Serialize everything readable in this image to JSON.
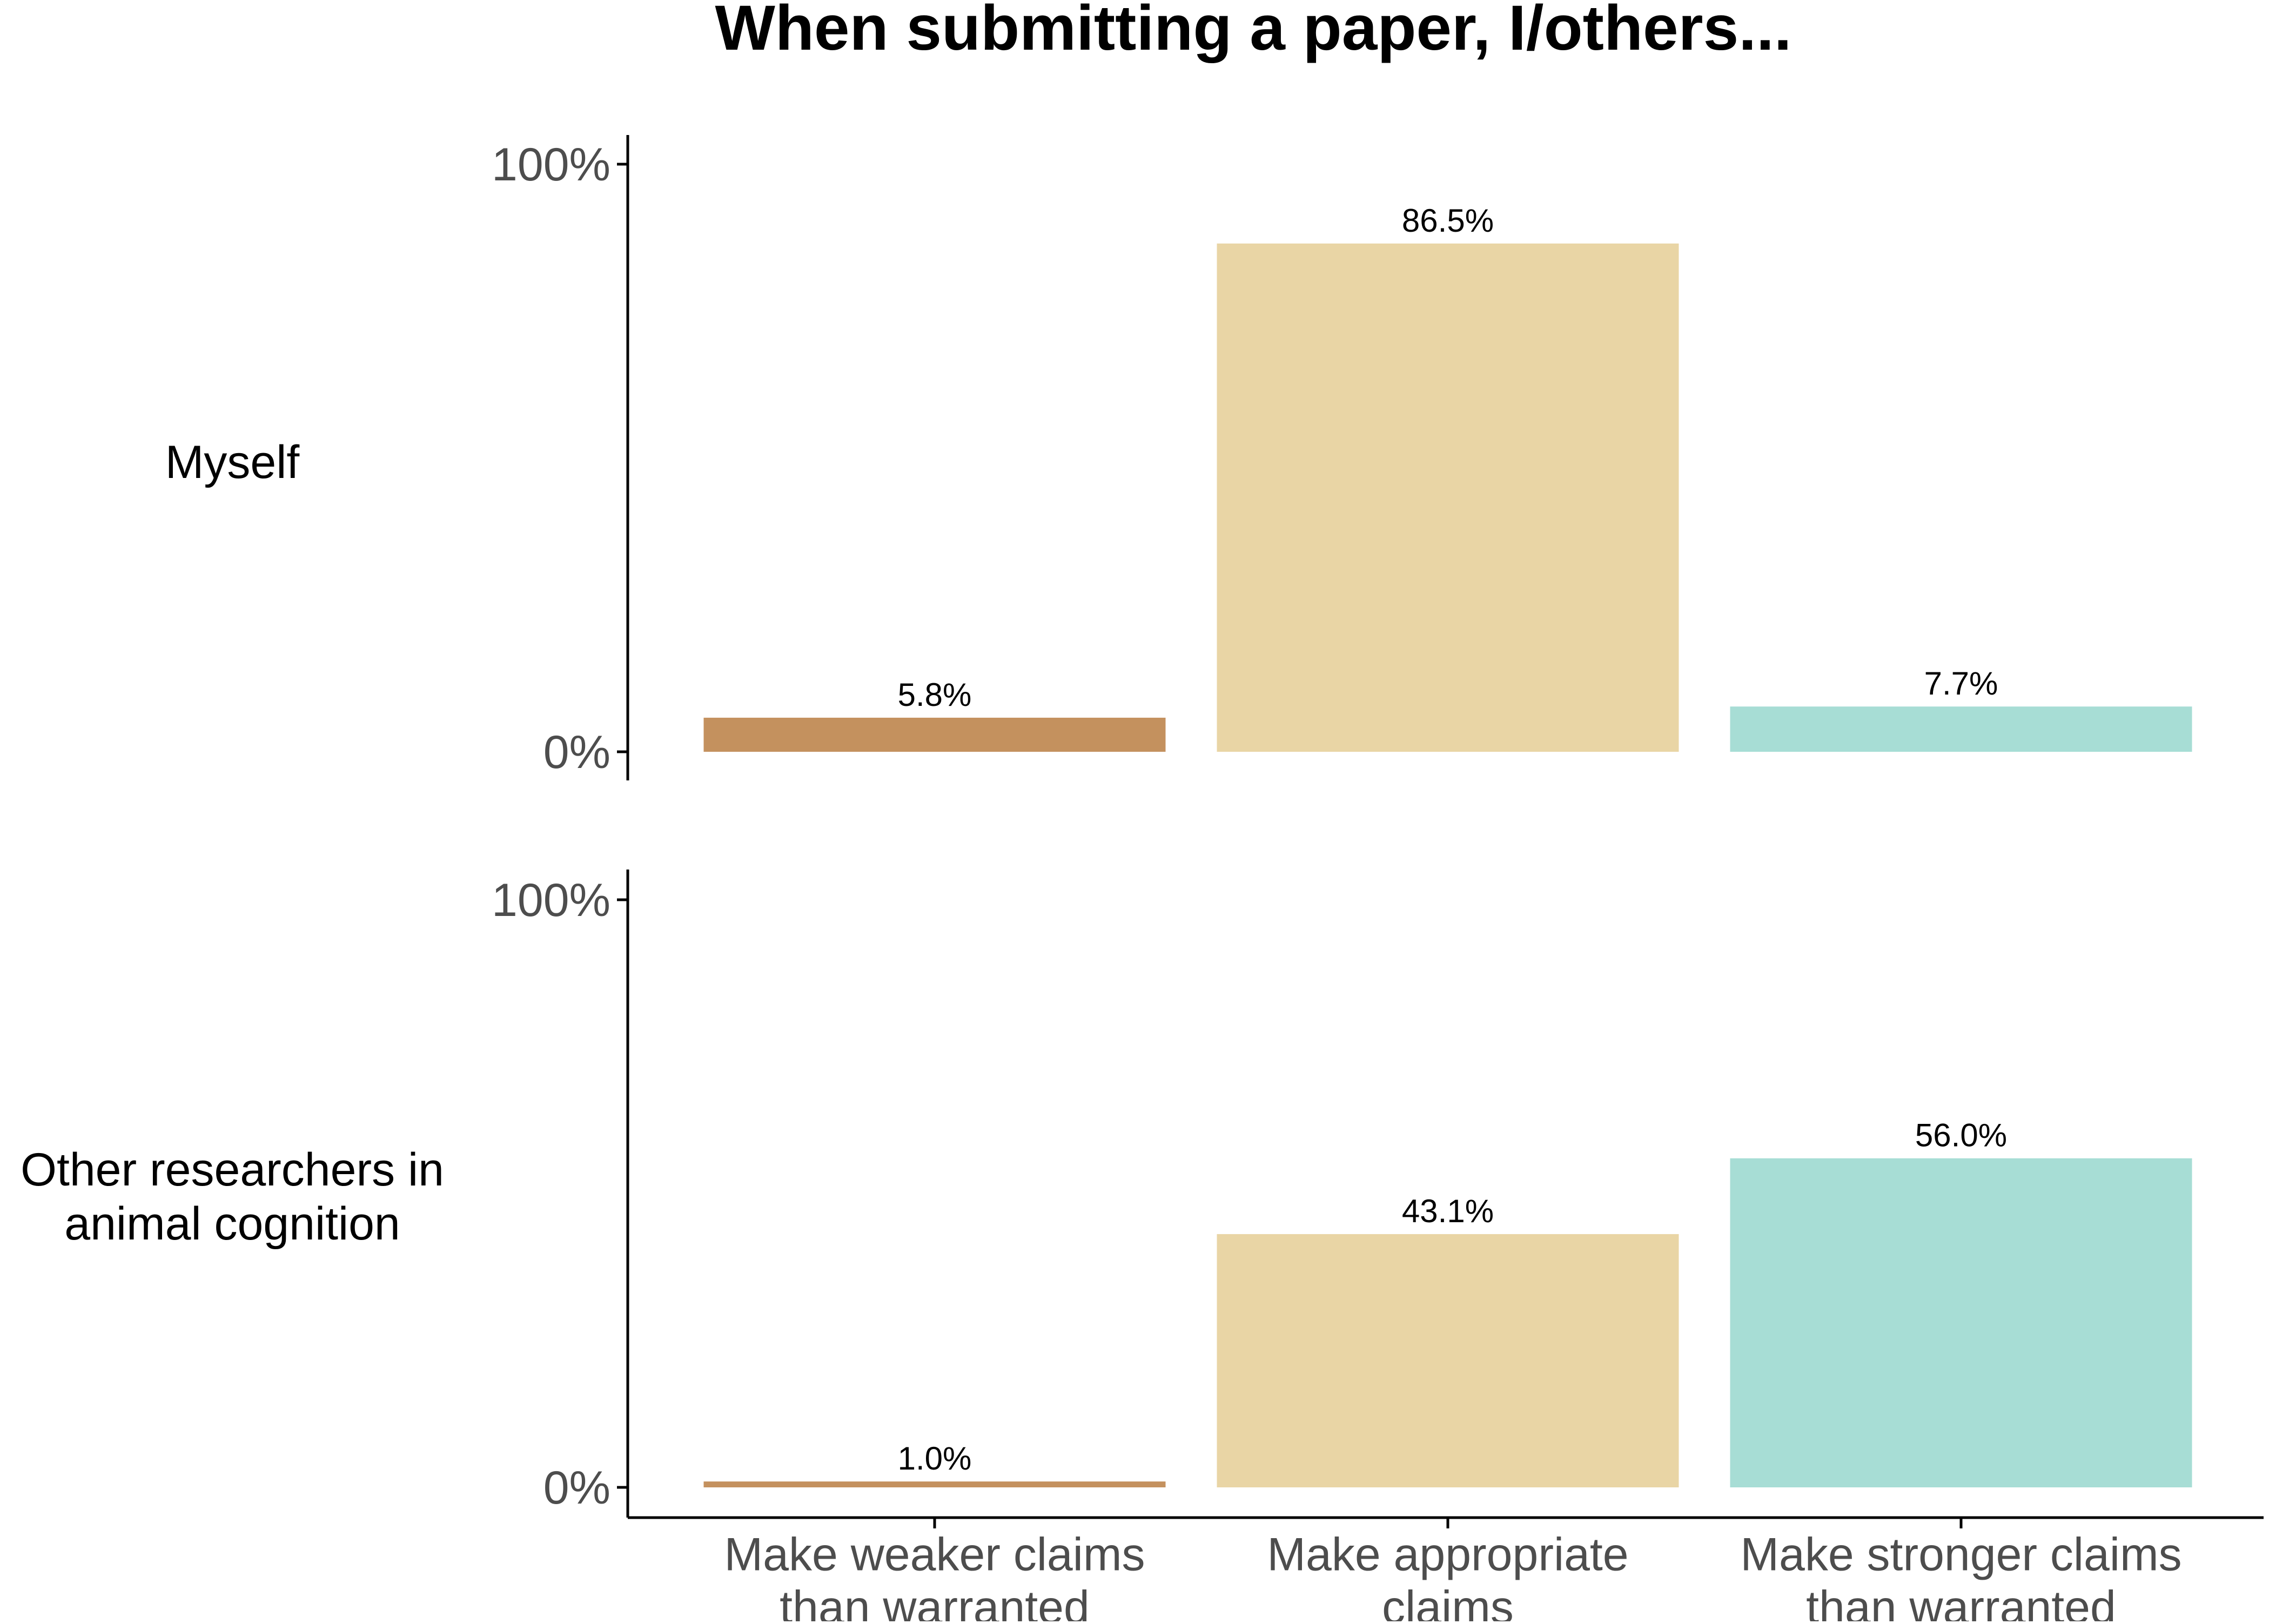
{
  "chart_data": {
    "type": "bar",
    "title": "When submitting a paper, I/others...",
    "xlabel": "",
    "ylabel": "",
    "ylim": [
      0,
      100
    ],
    "yticks": [
      "0%",
      "100%"
    ],
    "grid": false,
    "categories": [
      [
        "Make weaker claims",
        "than warranted"
      ],
      [
        "Make appropriate",
        "claims"
      ],
      [
        "Make stronger claims",
        "than warranted"
      ]
    ],
    "category_colors": [
      "#c4915e",
      "#e9d5a5",
      "#a7ddd5"
    ],
    "panels": [
      {
        "label": [
          "Myself"
        ],
        "values": [
          5.8,
          86.5,
          7.7
        ],
        "value_labels": [
          "5.8%",
          "86.5%",
          "7.7%"
        ]
      },
      {
        "label": [
          "Other researchers in",
          "animal cognition"
        ],
        "values": [
          1.0,
          43.1,
          56.0
        ],
        "value_labels": [
          "1.0%",
          "43.1%",
          "56.0%"
        ]
      }
    ]
  }
}
